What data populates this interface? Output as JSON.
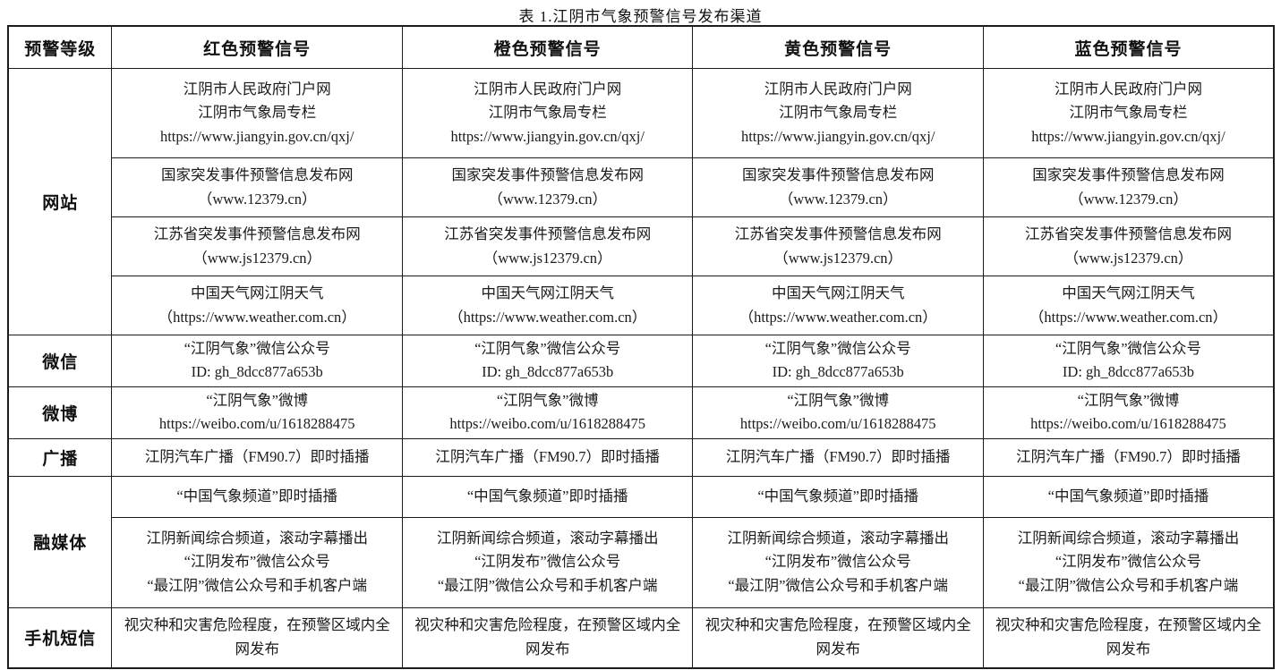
{
  "title": "表 1.江阴市气象预警信号发布渠道",
  "table": {
    "level_header": "预警等级",
    "signal_headers": [
      {
        "key": "red",
        "label": "红色预警信号"
      },
      {
        "key": "orange",
        "label": "橙色预警信号"
      },
      {
        "key": "yellow",
        "label": "黄色预警信号"
      },
      {
        "key": "blue",
        "label": "蓝色预警信号"
      }
    ],
    "channel_groups": [
      {
        "key": "website",
        "label": "网站",
        "rows": [
          {
            "key": "gov-portal",
            "lines": [
              "江阴市人民政府门户网",
              "江阴市气象局专栏",
              "https://www.jiangyin.gov.cn/qxj/"
            ]
          },
          {
            "key": "national-warning-site",
            "lines": [
              "国家突发事件预警信息发布网",
              "（www.12379.cn）"
            ]
          },
          {
            "key": "jiangsu-warning-site",
            "lines": [
              "江苏省突发事件预警信息发布网",
              "（www.js12379.cn）"
            ]
          },
          {
            "key": "china-weather-site",
            "lines": [
              "中国天气网江阴天气",
              "（https://www.weather.com.cn）"
            ]
          }
        ]
      },
      {
        "key": "wechat",
        "label": "微信",
        "rows": [
          {
            "key": "wechat-account",
            "lines": [
              "“江阴气象”微信公众号",
              "ID: gh_8dcc877a653b"
            ]
          }
        ]
      },
      {
        "key": "weibo",
        "label": "微博",
        "rows": [
          {
            "key": "weibo-account",
            "lines": [
              "“江阴气象”微博",
              "https://weibo.com/u/1618288475"
            ]
          }
        ]
      },
      {
        "key": "radio",
        "label": "广播",
        "rows": [
          {
            "key": "car-radio",
            "lines": [
              "江阴汽车广播（FM90.7）即时插播"
            ]
          }
        ]
      },
      {
        "key": "converged-media",
        "label": "融媒体",
        "rows": [
          {
            "key": "weather-channel",
            "lines": [
              "“中国气象频道”即时插播"
            ]
          },
          {
            "key": "local-media",
            "lines": [
              "江阴新闻综合频道，滚动字幕播出",
              "“江阴发布”微信公众号",
              "“最江阴”微信公众号和手机客户端"
            ]
          }
        ]
      },
      {
        "key": "sms",
        "label": "手机短信",
        "rows": [
          {
            "key": "sms-broadcast",
            "lines": [
              "视灾种和灾害危险程度，在预警区域内全网发布"
            ]
          }
        ]
      }
    ]
  }
}
